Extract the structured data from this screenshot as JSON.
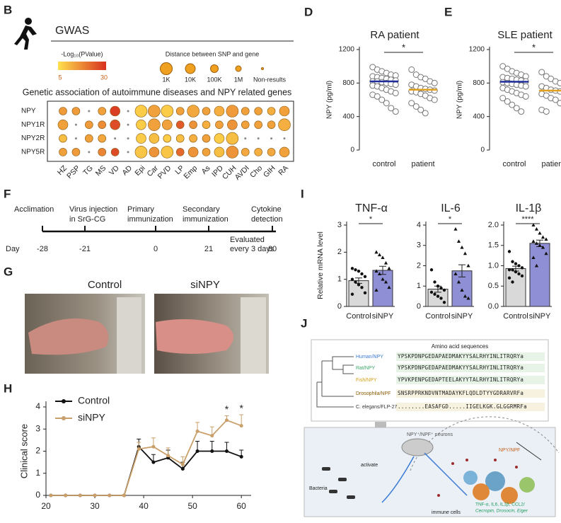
{
  "panel_labels": [
    "B",
    "D",
    "E",
    "F",
    "G",
    "H",
    "I",
    "J"
  ],
  "gwas": {
    "title": "GWAS",
    "colorbar_title": "-Log₁₀(PValue)",
    "colorbar_ticks": [
      5,
      30
    ],
    "distance_title": "Distance between SNP and gene",
    "distance_labels": [
      "1K",
      "10K",
      "100K",
      "1M",
      "Non-results"
    ],
    "heading": "Genetic association of autoimmune diseases and NPY related genes",
    "columns": [
      "HZ",
      "PSP",
      "TG",
      "MS",
      "VD",
      "AD",
      "Epi",
      "Car",
      "PVD",
      "LP",
      "Emp",
      "As",
      "IPD",
      "CUH",
      "AVDI",
      "Cho",
      "GIH",
      "RA"
    ],
    "rows": [
      {
        "name": "NPY",
        "cells": [
          [
            15,
            "100K"
          ],
          [
            15,
            "100K"
          ],
          [
            null,
            "Non-results"
          ],
          [
            14,
            "100K"
          ],
          [
            28,
            "10K"
          ],
          [
            null,
            "Non-results"
          ],
          [
            8,
            "1K"
          ],
          [
            14,
            "1K"
          ],
          [
            8,
            "1K"
          ],
          [
            14,
            "100K"
          ],
          [
            13,
            "1K"
          ],
          [
            14,
            "100K"
          ],
          [
            12,
            "10K"
          ],
          [
            15,
            "1K"
          ],
          [
            14,
            "100K"
          ],
          [
            14,
            "100K"
          ],
          [
            12,
            "100K"
          ],
          [
            14,
            "10K"
          ]
        ]
      },
      {
        "name": "NPY1R",
        "cells": [
          [
            14,
            "10K"
          ],
          [
            null,
            "Non-results"
          ],
          [
            15,
            "100K"
          ],
          [
            17,
            "100K"
          ],
          [
            26,
            "10K"
          ],
          [
            null,
            "Non-results"
          ],
          [
            8,
            "10K"
          ],
          [
            14,
            "1K"
          ],
          [
            14,
            "10K"
          ],
          [
            24,
            "100K"
          ],
          [
            16,
            "100K"
          ],
          [
            12,
            "100K"
          ],
          [
            14,
            "100K"
          ],
          [
            16,
            "10K"
          ],
          [
            14,
            "100K"
          ],
          [
            14,
            "100K"
          ],
          [
            14,
            "100K"
          ],
          [
            12,
            "1K"
          ]
        ]
      },
      {
        "name": "NPY2R",
        "cells": [
          [
            10,
            "100K"
          ],
          [
            null,
            "Non-results"
          ],
          [
            14,
            "100K"
          ],
          [
            13,
            "100K"
          ],
          [
            null,
            "Non-results"
          ],
          [
            null,
            "Non-results"
          ],
          [
            8,
            "10K"
          ],
          [
            10,
            "10K"
          ],
          [
            8,
            "100K"
          ],
          [
            10,
            "100K"
          ],
          [
            12,
            "100K"
          ],
          [
            14,
            "100K"
          ],
          [
            8,
            "10K"
          ],
          [
            10,
            "1K"
          ],
          [
            null,
            "Non-results"
          ],
          [
            null,
            "Non-results"
          ],
          [
            null,
            "Non-results"
          ],
          [
            null,
            "Non-results"
          ]
        ]
      },
      {
        "name": "NPY5R",
        "cells": [
          [
            14,
            "100K"
          ],
          [
            15,
            "100K"
          ],
          [
            null,
            "Non-results"
          ],
          [
            18,
            "100K"
          ],
          [
            26,
            "100K"
          ],
          [
            null,
            "Non-results"
          ],
          [
            9,
            "1K"
          ],
          [
            16,
            "10K"
          ],
          [
            9,
            "1K"
          ],
          [
            22,
            "100K"
          ],
          [
            16,
            "10K"
          ],
          [
            14,
            "100K"
          ],
          [
            10,
            "10K"
          ],
          [
            16,
            "1K"
          ],
          [
            13,
            "100K"
          ],
          [
            12,
            "100K"
          ],
          [
            13,
            "100K"
          ],
          [
            14,
            "10K"
          ]
        ]
      }
    ]
  },
  "dotplots": [
    {
      "title": "RA patient",
      "ylabel": "NPY (pg/ml)",
      "ylim": [
        0,
        1200
      ],
      "yticks": [
        0,
        400,
        800,
        1200
      ],
      "categories": [
        "control",
        "patient"
      ],
      "significance": "*",
      "groups": [
        {
          "mean": 820,
          "values": [
            990,
            960,
            940,
            920,
            900,
            890,
            880,
            870,
            860,
            850,
            840,
            830,
            820,
            820,
            810,
            800,
            790,
            780,
            770,
            760,
            740,
            720,
            700,
            680,
            660,
            640,
            600,
            560,
            500,
            460
          ]
        },
        {
          "mean": 720,
          "values": [
            960,
            900,
            870,
            850,
            820,
            800,
            780,
            760,
            740,
            730,
            720,
            710,
            700,
            690,
            670,
            650,
            620,
            600,
            560,
            520,
            480,
            440
          ]
        }
      ]
    },
    {
      "title": "SLE patient",
      "ylabel": "NPY (pg/ml)",
      "ylim": [
        0,
        1200
      ],
      "yticks": [
        0,
        400,
        800,
        1200
      ],
      "categories": [
        "control",
        "patient"
      ],
      "significance": "*",
      "groups": [
        {
          "mean": 815,
          "values": [
            1000,
            970,
            940,
            920,
            900,
            880,
            870,
            860,
            850,
            840,
            830,
            820,
            810,
            800,
            790,
            780,
            770,
            760,
            740,
            720,
            700,
            680,
            660,
            640,
            620,
            580,
            540,
            500,
            460
          ]
        },
        {
          "mean": 710,
          "values": [
            930,
            880,
            850,
            820,
            800,
            780,
            760,
            740,
            720,
            710,
            700,
            690,
            670,
            650,
            620,
            600,
            560,
            520,
            480,
            460
          ]
        }
      ]
    }
  ],
  "timeline": {
    "day_label": "Day",
    "events": [
      {
        "lines": [
          "Acclimation"
        ],
        "day": -28
      },
      {
        "lines": [
          "Virus injection",
          "in SrG-CG"
        ],
        "day": -21
      },
      {
        "lines": [
          "Primary",
          "immunization"
        ],
        "day": 0
      },
      {
        "lines": [
          "Secondary",
          "immunization"
        ],
        "day": 21
      },
      {
        "lines": [
          "Cytokine",
          "detection"
        ],
        "day": 60
      }
    ],
    "note": [
      "Evaluated",
      "every 3 days"
    ]
  },
  "photos": {
    "labels": [
      "Control",
      "siNPY"
    ]
  },
  "line_chart": {
    "type": "line",
    "ylabel": "Clinical score",
    "xlim": [
      20,
      62
    ],
    "xticks": [
      20,
      30,
      40,
      50,
      60
    ],
    "ylim": [
      0,
      4
    ],
    "yticks": [
      0,
      1,
      2,
      3,
      4
    ],
    "x": [
      21,
      24,
      27,
      30,
      33,
      36,
      39,
      42,
      45,
      48,
      51,
      54,
      57,
      60
    ],
    "series": [
      {
        "name": "Control",
        "color": "#111111",
        "values": [
          0,
          0,
          0,
          0,
          0,
          0,
          2.2,
          1.5,
          1.7,
          1.2,
          2.0,
          2.0,
          2.0,
          1.75
        ],
        "errors": [
          0,
          0,
          0,
          0,
          0,
          0,
          0.35,
          0.35,
          0.35,
          0.3,
          0.45,
          0.45,
          0.4,
          0.3
        ]
      },
      {
        "name": "siNPY",
        "color": "#c9a06a",
        "values": [
          0,
          0,
          0,
          0,
          0,
          0,
          2.1,
          2.2,
          1.8,
          1.4,
          2.9,
          2.7,
          3.4,
          3.15
        ],
        "errors": [
          0,
          0,
          0,
          0,
          0,
          0,
          0.3,
          0.4,
          0.35,
          0.35,
          0.4,
          0.4,
          0.2,
          0.5
        ]
      }
    ],
    "annotations": [
      {
        "x": 57,
        "label": "*"
      },
      {
        "x": 60,
        "label": "*"
      }
    ]
  },
  "bar_charts": {
    "ylabel": "Relative mRNA level",
    "categories": [
      "Control",
      "siNPY"
    ],
    "colors": [
      "#d9d9d9",
      "#8f8fd6"
    ],
    "panels": [
      {
        "title": "TNF-α",
        "ylim": [
          0,
          3
        ],
        "yticks": [
          0,
          1,
          2,
          3
        ],
        "means": [
          0.95,
          1.33
        ],
        "sems": [
          0.1,
          0.15
        ],
        "significance": "*",
        "points": [
          [
            1.4,
            1.35,
            1.3,
            1.2,
            1.1,
            1.0,
            0.9,
            0.8,
            0.7,
            0.5,
            0.45
          ],
          [
            2.0,
            1.9,
            1.8,
            1.6,
            1.4,
            1.3,
            1.2,
            1.0,
            0.9,
            0.7,
            0.6
          ]
        ]
      },
      {
        "title": "IL-6",
        "ylim": [
          0,
          4
        ],
        "yticks": [
          0,
          1,
          2,
          3,
          4
        ],
        "means": [
          0.85,
          1.75
        ],
        "sems": [
          0.15,
          0.3
        ],
        "significance": "*",
        "points": [
          [
            1.8,
            1.2,
            1.0,
            0.9,
            0.8,
            0.7,
            0.6,
            0.5,
            0.4,
            0.2
          ],
          [
            3.8,
            3.2,
            2.9,
            2.6,
            2.0,
            1.6,
            1.2,
            0.8,
            0.5,
            0.4
          ]
        ]
      },
      {
        "title": "IL-1β",
        "ylim": [
          0,
          2
        ],
        "yticks": [
          {
            "value": 0,
            "label": "0.0"
          },
          {
            "value": 0.5,
            "label": "0.5"
          },
          {
            "value": 1,
            "label": "1.0"
          },
          {
            "value": 1.5,
            "label": "1.5"
          },
          {
            "value": 2,
            "label": "2.0"
          }
        ],
        "means": [
          0.93,
          1.55
        ],
        "sems": [
          0.06,
          0.08
        ],
        "significance": "****",
        "points": [
          [
            1.35,
            1.1,
            1.05,
            1.0,
            0.95,
            0.9,
            0.9,
            0.85,
            0.8,
            0.75,
            0.7,
            0.6
          ],
          [
            2.0,
            1.9,
            1.8,
            1.7,
            1.65,
            1.6,
            1.55,
            1.5,
            1.45,
            1.3,
            1.2,
            1.0
          ]
        ]
      }
    ]
  },
  "diagram": {
    "seq_title": "Amino acid sequences",
    "species": [
      {
        "name": "Human/NPY",
        "seq": "YPSKPDNPGEDAPAEDMAKYYSALRHYINLITRQRYa",
        "color": "#3a7bd5"
      },
      {
        "name": "Rat/NPY",
        "seq": "YPSKPDNPGEDAPAEDMAKYYSALRHYINLITRQRYa",
        "color": "#3aa66a"
      },
      {
        "name": "Fish/NPY",
        "seq": "YPVKPENPGEDAPTEELAKYYTALRHYINLITRQRYa",
        "color": "#d4a017"
      },
      {
        "name": "Drosophila/NPF",
        "seq": "SNSRPPRKNDVNTMADAYKFLQDLDTYYGDRARVRFa",
        "color": "#8a5a00"
      },
      {
        "name": "C. elegans/FLP-27",
        "seq": "........EASAFGD.....IIGELKGK.GLGGRMRFa",
        "color": "#333333"
      }
    ],
    "neurons": "NPY⁺/NPF⁺ neurons",
    "activate": "activate",
    "bacteria": "Bacteria",
    "immune": "immune cells",
    "npy_npf": "NPY/NPF",
    "cytokines": [
      "TNF-α, IL6, IL1β, CCL2/",
      "Cecropin, Drosocin, Eiger"
    ]
  }
}
